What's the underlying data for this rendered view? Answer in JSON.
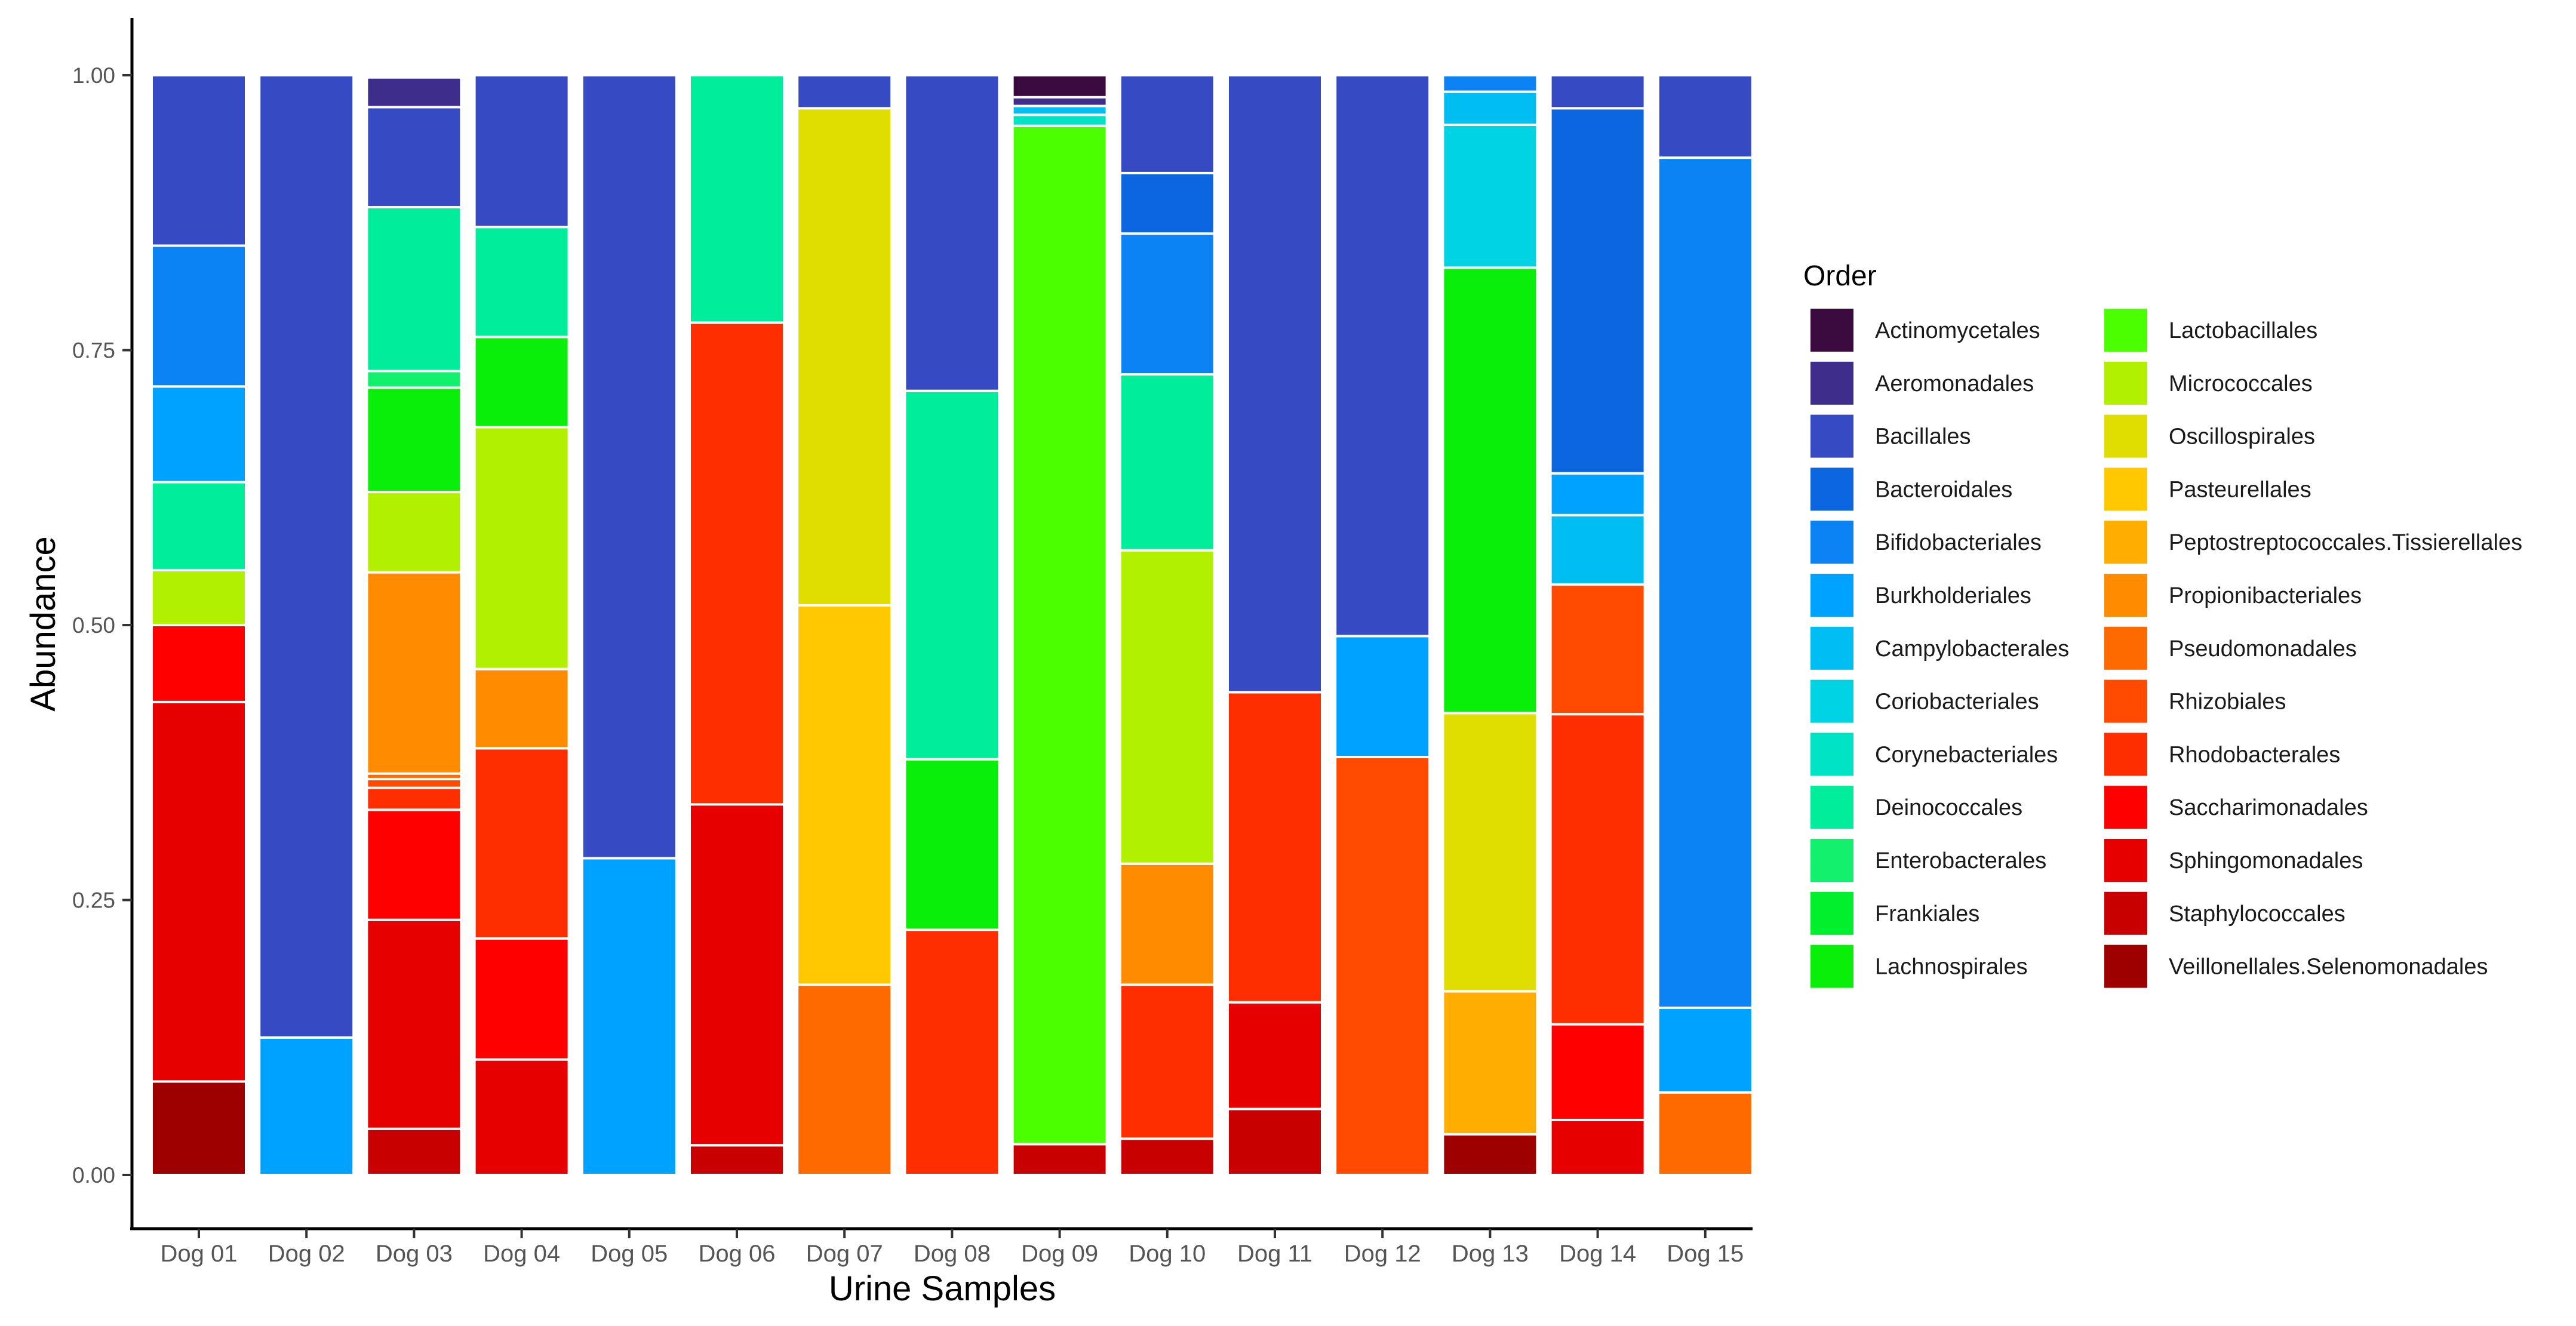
{
  "chart_data": {
    "type": "bar",
    "stacked": true,
    "xlabel": "Urine Samples",
    "ylabel": "Abundance",
    "ylim": [
      0,
      1
    ],
    "yticks": [
      "0.00",
      "0.25",
      "0.50",
      "0.75",
      "1.00"
    ],
    "legend": {
      "title": "Order",
      "placement": "right"
    },
    "categories": [
      "Dog 01",
      "Dog 02",
      "Dog 03",
      "Dog 04",
      "Dog 05",
      "Dog 06",
      "Dog 07",
      "Dog 08",
      "Dog 09",
      "Dog 10",
      "Dog 11",
      "Dog 12",
      "Dog 13",
      "Dog 14",
      "Dog 15"
    ],
    "orders": [
      {
        "name": "Actinomycetales",
        "color": "#3b0a3f"
      },
      {
        "name": "Aeromonadales",
        "color": "#3e2d8a"
      },
      {
        "name": "Bacillales",
        "color": "#364bc3"
      },
      {
        "name": "Bacteroidales",
        "color": "#0b66e0"
      },
      {
        "name": "Bifidobacteriales",
        "color": "#0b83f5"
      },
      {
        "name": "Burkholderiales",
        "color": "#00a2ff"
      },
      {
        "name": "Campylobacterales",
        "color": "#00bdf2"
      },
      {
        "name": "Coriobacteriales",
        "color": "#00d4e4"
      },
      {
        "name": "Corynebacteriales",
        "color": "#00e3c5"
      },
      {
        "name": "Deinococcales",
        "color": "#00ee9b"
      },
      {
        "name": "Enterobacterales",
        "color": "#12f06d"
      },
      {
        "name": "Frankiales",
        "color": "#00f02e"
      },
      {
        "name": "Lachnospirales",
        "color": "#0aef0a"
      },
      {
        "name": "Lactobacillales",
        "color": "#4cff00"
      },
      {
        "name": "Micrococcales",
        "color": "#b0f000"
      },
      {
        "name": "Oscillospirales",
        "color": "#e0dd00"
      },
      {
        "name": "Pasteurellales",
        "color": "#ffc800"
      },
      {
        "name": "Peptostreptococcales.Tissierellales",
        "color": "#ffae00"
      },
      {
        "name": "Propionibacteriales",
        "color": "#ff8c00"
      },
      {
        "name": "Pseudomonadales",
        "color": "#ff6a00"
      },
      {
        "name": "Rhizobiales",
        "color": "#ff4a00"
      },
      {
        "name": "Rhodobacterales",
        "color": "#ff2e00"
      },
      {
        "name": "Saccharimonadales",
        "color": "#ff0000"
      },
      {
        "name": "Sphingomonadales",
        "color": "#e60000"
      },
      {
        "name": "Staphylococcales",
        "color": "#c80000"
      },
      {
        "name": "Veillonellales.Selenomonadales",
        "color": "#9e0000"
      }
    ],
    "bars": [
      {
        "sample": "Dog 01",
        "segments": [
          {
            "order": "Veillonellales.Selenomonadales",
            "value": 0.085
          },
          {
            "order": "Sphingomonadales",
            "value": 0.345
          },
          {
            "order": "Saccharimonadales",
            "value": 0.07
          },
          {
            "order": "Micrococcales",
            "value": 0.05
          },
          {
            "order": "Deinococcales",
            "value": 0.08
          },
          {
            "order": "Burkholderiales",
            "value": 0.087
          },
          {
            "order": "Bifidobacteriales",
            "value": 0.128
          },
          {
            "order": "Bacillales",
            "value": 0.155
          }
        ]
      },
      {
        "sample": "Dog 02",
        "segments": [
          {
            "order": "Burkholderiales",
            "value": 0.125
          },
          {
            "order": "Bacillales",
            "value": 0.875
          }
        ]
      },
      {
        "sample": "Dog 03",
        "segments": [
          {
            "order": "Staphylococcales",
            "value": 0.042
          },
          {
            "order": "Sphingomonadales",
            "value": 0.19
          },
          {
            "order": "Saccharimonadales",
            "value": 0.1
          },
          {
            "order": "Rhodobacterales",
            "value": 0.02
          },
          {
            "order": "Rhizobiales",
            "value": 0.008
          },
          {
            "order": "Pseudomonadales",
            "value": 0.005
          },
          {
            "order": "Propionibacteriales",
            "value": 0.183
          },
          {
            "order": "Micrococcales",
            "value": 0.073
          },
          {
            "order": "Lachnospirales",
            "value": 0.095
          },
          {
            "order": "Enterobacterales",
            "value": 0.015
          },
          {
            "order": "Deinococcales",
            "value": 0.149
          },
          {
            "order": "Bacillales",
            "value": 0.091
          },
          {
            "order": "Aeromonadales",
            "value": 0.027
          }
        ]
      },
      {
        "sample": "Dog 04",
        "segments": [
          {
            "order": "Sphingomonadales",
            "value": 0.105
          },
          {
            "order": "Saccharimonadales",
            "value": 0.11
          },
          {
            "order": "Rhodobacterales",
            "value": 0.173
          },
          {
            "order": "Propionibacteriales",
            "value": 0.072
          },
          {
            "order": "Micrococcales",
            "value": 0.22
          },
          {
            "order": "Lachnospirales",
            "value": 0.082
          },
          {
            "order": "Deinococcales",
            "value": 0.1
          },
          {
            "order": "Bacillales",
            "value": 0.138
          }
        ]
      },
      {
        "sample": "Dog 05",
        "segments": [
          {
            "order": "Burkholderiales",
            "value": 0.288
          },
          {
            "order": "Bacillales",
            "value": 0.712
          }
        ]
      },
      {
        "sample": "Dog 06",
        "segments": [
          {
            "order": "Staphylococcales",
            "value": 0.027
          },
          {
            "order": "Sphingomonadales",
            "value": 0.31
          },
          {
            "order": "Rhodobacterales",
            "value": 0.438
          },
          {
            "order": "Deinococcales",
            "value": 0.225
          }
        ]
      },
      {
        "sample": "Dog 07",
        "segments": [
          {
            "order": "Pseudomonadales",
            "value": 0.173
          },
          {
            "order": "Pasteurellales",
            "value": 0.345
          },
          {
            "order": "Oscillospirales",
            "value": 0.452
          },
          {
            "order": "Bacillales",
            "value": 0.03
          }
        ]
      },
      {
        "sample": "Dog 08",
        "segments": [
          {
            "order": "Rhodobacterales",
            "value": 0.223
          },
          {
            "order": "Lachnospirales",
            "value": 0.155
          },
          {
            "order": "Deinococcales",
            "value": 0.335
          },
          {
            "order": "Bacillales",
            "value": 0.287
          }
        ]
      },
      {
        "sample": "Dog 09",
        "segments": [
          {
            "order": "Staphylococcales",
            "value": 0.028
          },
          {
            "order": "Lactobacillales",
            "value": 0.926
          },
          {
            "order": "Corynebacteriales",
            "value": 0.01
          },
          {
            "order": "Campylobacterales",
            "value": 0.008
          },
          {
            "order": "Aeromonadales",
            "value": 0.008
          },
          {
            "order": "Actinomycetales",
            "value": 0.02
          }
        ]
      },
      {
        "sample": "Dog 10",
        "segments": [
          {
            "order": "Staphylococcales",
            "value": 0.033
          },
          {
            "order": "Rhodobacterales",
            "value": 0.14
          },
          {
            "order": "Propionibacteriales",
            "value": 0.11
          },
          {
            "order": "Micrococcales",
            "value": 0.285
          },
          {
            "order": "Deinococcales",
            "value": 0.16
          },
          {
            "order": "Bifidobacteriales",
            "value": 0.128
          },
          {
            "order": "Bacteroidales",
            "value": 0.055
          },
          {
            "order": "Bacillales",
            "value": 0.089
          }
        ]
      },
      {
        "sample": "Dog 11",
        "segments": [
          {
            "order": "Staphylococcales",
            "value": 0.06
          },
          {
            "order": "Sphingomonadales",
            "value": 0.097
          },
          {
            "order": "Rhodobacterales",
            "value": 0.282
          },
          {
            "order": "Bacillales",
            "value": 0.561
          }
        ]
      },
      {
        "sample": "Dog 12",
        "segments": [
          {
            "order": "Rhizobiales",
            "value": 0.38
          },
          {
            "order": "Burkholderiales",
            "value": 0.11
          },
          {
            "order": "Bacillales",
            "value": 0.51
          }
        ]
      },
      {
        "sample": "Dog 13",
        "segments": [
          {
            "order": "Veillonellales.Selenomonadales",
            "value": 0.037
          },
          {
            "order": "Peptostreptococcales.Tissierellales",
            "value": 0.13
          },
          {
            "order": "Oscillospirales",
            "value": 0.253
          },
          {
            "order": "Lachnospirales",
            "value": 0.405
          },
          {
            "order": "Coriobacteriales",
            "value": 0.13
          },
          {
            "order": "Campylobacterales",
            "value": 0.03
          },
          {
            "order": "Bifidobacteriales",
            "value": 0.015
          }
        ]
      },
      {
        "sample": "Dog 14",
        "segments": [
          {
            "order": "Sphingomonadales",
            "value": 0.05
          },
          {
            "order": "Saccharimonadales",
            "value": 0.087
          },
          {
            "order": "Rhodobacterales",
            "value": 0.282
          },
          {
            "order": "Rhizobiales",
            "value": 0.118
          },
          {
            "order": "Campylobacterales",
            "value": 0.063
          },
          {
            "order": "Burkholderiales",
            "value": 0.038
          },
          {
            "order": "Bacteroidales",
            "value": 0.332
          },
          {
            "order": "Bacillales",
            "value": 0.03
          }
        ]
      },
      {
        "sample": "Dog 15",
        "segments": [
          {
            "order": "Pseudomonadales",
            "value": 0.075
          },
          {
            "order": "Burkholderiales",
            "value": 0.077
          },
          {
            "order": "Bifidobacteriales",
            "value": 0.773
          },
          {
            "order": "Bacillales",
            "value": 0.075
          }
        ]
      }
    ]
  }
}
